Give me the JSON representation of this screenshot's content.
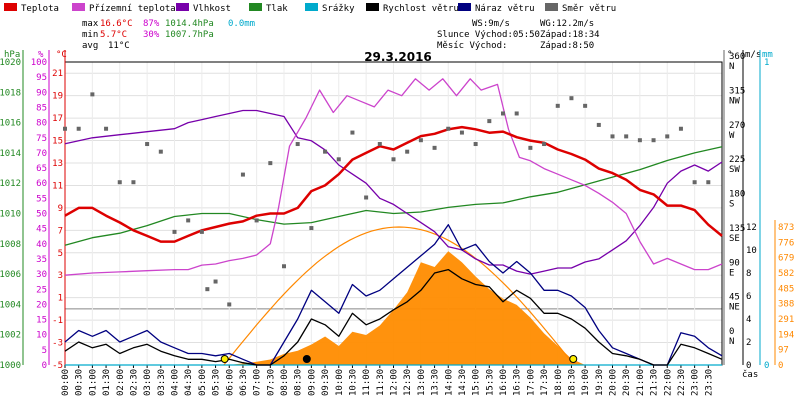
{
  "legend": [
    {
      "label": "Teplota",
      "color": "#dd0000"
    },
    {
      "label": "Přízemní teplota",
      "color": "#cc44cc"
    },
    {
      "label": "Vlhkost",
      "color": "#7700aa"
    },
    {
      "label": "Tlak",
      "color": "#228822"
    },
    {
      "label": "Srážky",
      "color": "#00aacc"
    },
    {
      "label": "Rychlost větru",
      "color": "#000000"
    },
    {
      "label": "Náraz větru",
      "color": "#000080"
    },
    {
      "label": "Směr větru",
      "color": "#666666"
    }
  ],
  "stats": {
    "max_label": "max",
    "max_temp": "16.6°C",
    "max_hum": "87%",
    "max_press": "1014.4hPa",
    "max_rain": "0.0mm",
    "min_label": "min",
    "min_temp": "5.7°C",
    "min_hum": "30%",
    "min_press": "1007.7hPa",
    "avg_label": "avg",
    "avg_temp": "11°C",
    "ws": "WS:9m/s",
    "wg": "WG:12.2m/s",
    "sun_rise": "Slunce Východ:05:50",
    "sun_set": "Západ:18:34",
    "moon_rise": "Měsíc  Východ:",
    "moon_set": "Západ:8:50"
  },
  "chart_data": {
    "type": "line",
    "title": "29.3.2016",
    "x_label": "čas",
    "x_ticks": [
      "00:00",
      "00:30",
      "01:00",
      "01:30",
      "02:00",
      "02:30",
      "03:00",
      "03:30",
      "04:00",
      "04:30",
      "05:00",
      "05:30",
      "06:00",
      "06:30",
      "07:00",
      "07:30",
      "08:00",
      "08:30",
      "09:00",
      "09:30",
      "10:00",
      "10:30",
      "11:00",
      "11:30",
      "12:00",
      "12:30",
      "13:00",
      "13:30",
      "14:00",
      "14:30",
      "15:00",
      "15:30",
      "16:00",
      "16:30",
      "17:00",
      "17:30",
      "18:00",
      "18:30",
      "19:00",
      "19:30",
      "20:00",
      "20:30",
      "21:00",
      "21:30",
      "22:00",
      "22:30",
      "23:00",
      "23:30"
    ],
    "axes": {
      "pressure_hpa": {
        "unit": "hPa",
        "ticks": [
          1000,
          1002,
          1004,
          1006,
          1008,
          1010,
          1012,
          1014,
          1016,
          1018,
          1020
        ],
        "color": "#228822"
      },
      "humidity_pct": {
        "unit": "%",
        "ticks": [
          0,
          5,
          10,
          15,
          20,
          25,
          30,
          35,
          40,
          45,
          50,
          55,
          60,
          65,
          70,
          75,
          80,
          85,
          90,
          95,
          100
        ],
        "color": "#cc00cc"
      },
      "temperature_c": {
        "unit": "°C",
        "ticks": [
          -5,
          -3,
          -1,
          1,
          3,
          5,
          7,
          9,
          11,
          13,
          15,
          17,
          19,
          21
        ],
        "color": "#dd0000"
      },
      "wind_dir": {
        "unit": "°",
        "ticks": [
          {
            "v": 0,
            "l": "N"
          },
          {
            "v": 45,
            "l": "NE"
          },
          {
            "v": 90,
            "l": "E"
          },
          {
            "v": 135,
            "l": "SE"
          },
          {
            "v": 180,
            "l": "S"
          },
          {
            "v": 225,
            "l": "SW"
          },
          {
            "v": 270,
            "l": "W"
          },
          {
            "v": 315,
            "l": "NW"
          },
          {
            "v": 360,
            "l": "N"
          }
        ]
      },
      "wind_ms": {
        "unit": "m/s",
        "ticks": [
          0,
          2,
          4,
          6,
          8,
          10,
          12
        ]
      },
      "rain_mm": {
        "unit": "mm",
        "ticks": [
          0,
          1
        ]
      },
      "solar_wm2": {
        "ticks": [
          0,
          97,
          194,
          291,
          388,
          485,
          582,
          679,
          776,
          873
        ]
      }
    },
    "series": [
      {
        "name": "Teplota",
        "color": "#dd0000",
        "axis": "temperature_c",
        "x": [
          0,
          0.5,
          1,
          1.5,
          2,
          2.5,
          3,
          3.5,
          4,
          4.5,
          5,
          5.5,
          6,
          6.5,
          7,
          7.5,
          8,
          8.5,
          9,
          9.5,
          10,
          10.5,
          11,
          11.5,
          12,
          12.5,
          13,
          13.5,
          14,
          14.5,
          15,
          15.5,
          16,
          16.5,
          17,
          17.5,
          18,
          18.5,
          19,
          19.5,
          20,
          20.5,
          21,
          21.5,
          22,
          22.5,
          23,
          23.5,
          24
        ],
        "y": [
          8.3,
          9.0,
          9.0,
          8.3,
          7.7,
          7.0,
          6.5,
          6.0,
          6.0,
          6.5,
          7.0,
          7.3,
          7.6,
          7.8,
          8.3,
          8.5,
          8.5,
          9.0,
          10.5,
          11.0,
          12.0,
          13.3,
          13.9,
          14.5,
          14.2,
          14.8,
          15.4,
          15.6,
          16.0,
          16.2,
          16.0,
          15.7,
          15.8,
          15.3,
          15.0,
          14.8,
          14.2,
          13.8,
          13.3,
          12.5,
          12.1,
          11.5,
          10.6,
          10.2,
          9.2,
          9.2,
          8.8,
          7.5,
          6.5
        ]
      },
      {
        "name": "Přízemní teplota",
        "color": "#cc44cc",
        "axis": "temperature_c",
        "x": [
          0,
          1,
          2,
          3,
          4,
          4.5,
          5,
          5.5,
          6,
          6.5,
          7,
          7.5,
          7.8,
          8.2,
          8.8,
          9.3,
          9.8,
          10.3,
          10.8,
          11.3,
          11.8,
          12.3,
          12.8,
          13.3,
          13.8,
          14.3,
          14.8,
          15.2,
          15.8,
          16.2,
          16.6,
          17,
          17.5,
          18,
          18.5,
          19,
          19.5,
          20,
          20.5,
          21,
          21.5,
          22,
          22.5,
          23,
          23.5,
          24
        ],
        "y": [
          3.0,
          3.2,
          3.3,
          3.4,
          3.5,
          3.5,
          3.9,
          4.0,
          4.3,
          4.5,
          4.8,
          5.8,
          9.0,
          14.5,
          17.0,
          19.5,
          17.5,
          19.0,
          18.5,
          18.0,
          19.5,
          19.0,
          20.5,
          19.5,
          20.5,
          19.0,
          20.5,
          19.5,
          20.0,
          16.0,
          13.5,
          13.2,
          12.5,
          12.0,
          11.5,
          11.0,
          10.3,
          9.5,
          8.5,
          6.0,
          4.0,
          4.5,
          4.0,
          3.5,
          3.5,
          4.0
        ]
      },
      {
        "name": "Vlhkost",
        "color": "#7700aa",
        "axis": "humidity_pct",
        "x": [
          0,
          1,
          2,
          3,
          4,
          4.5,
          5,
          5.5,
          6,
          6.5,
          7,
          7.5,
          8,
          8.5,
          9,
          9.5,
          10,
          10.5,
          11,
          11.5,
          12,
          12.5,
          13,
          13.5,
          14,
          14.5,
          15,
          15.5,
          16,
          16.5,
          17,
          17.5,
          18,
          18.5,
          19,
          19.5,
          20,
          20.5,
          21,
          21.5,
          22,
          22.5,
          23,
          23.5,
          24
        ],
        "y": [
          73,
          75,
          76,
          77,
          78,
          80,
          81,
          82,
          83,
          84,
          84,
          83,
          82,
          75,
          74,
          71,
          66,
          63,
          60,
          55,
          53,
          50,
          47,
          44,
          39,
          38,
          35,
          33,
          33,
          31,
          30,
          31,
          32,
          32,
          34,
          35,
          38,
          41,
          46,
          52,
          60,
          64,
          66,
          64,
          67
        ]
      },
      {
        "name": "Tlak",
        "color": "#228822",
        "axis": "pressure_hpa",
        "x": [
          0,
          1,
          2,
          3,
          4,
          5,
          6,
          7,
          8,
          9,
          10,
          11,
          12,
          13,
          14,
          15,
          16,
          17,
          18,
          19,
          20,
          21,
          22,
          23,
          24
        ],
        "y": [
          1007.9,
          1008.4,
          1008.7,
          1009.2,
          1009.8,
          1010.0,
          1010.0,
          1009.6,
          1009.3,
          1009.4,
          1009.8,
          1010.2,
          1010.0,
          1010.1,
          1010.4,
          1010.6,
          1010.7,
          1011.1,
          1011.4,
          1011.9,
          1012.4,
          1012.9,
          1013.5,
          1014.0,
          1014.4
        ]
      },
      {
        "name": "Srážky",
        "color": "#00aacc",
        "axis": "rain_mm",
        "x": [
          0,
          24
        ],
        "y": [
          0,
          0
        ]
      },
      {
        "name": "Rychlost větru",
        "color": "#000000",
        "axis": "wind_ms",
        "x": [
          0,
          0.5,
          1,
          1.5,
          2,
          2.5,
          3,
          3.5,
          4,
          4.5,
          5,
          5.5,
          6,
          6.5,
          7,
          7.5,
          8,
          8.5,
          9,
          9.5,
          10,
          10.5,
          11,
          11.5,
          12,
          12.5,
          13,
          13.5,
          14,
          14.5,
          15,
          15.5,
          16,
          16.5,
          17,
          17.5,
          18,
          18.5,
          19,
          19.5,
          20,
          20.5,
          21,
          21.5,
          22,
          22.5,
          23,
          23.5,
          24
        ],
        "y": [
          1.2,
          2.0,
          1.5,
          1.8,
          1.0,
          1.5,
          1.8,
          1.2,
          0.8,
          0.5,
          0.5,
          0.3,
          0.5,
          0.2,
          0,
          0,
          0.8,
          2.0,
          4.0,
          3.5,
          2.5,
          4.5,
          3.5,
          4.0,
          4.8,
          5.5,
          6.5,
          8.0,
          8.3,
          7.5,
          7.0,
          6.8,
          5.5,
          6.5,
          5.8,
          4.5,
          4.5,
          4.0,
          3.2,
          2.0,
          1.0,
          0.8,
          0.5,
          0,
          0,
          1.8,
          1.5,
          1.0,
          0.5
        ]
      },
      {
        "name": "Náraz větru",
        "color": "#000080",
        "axis": "wind_ms",
        "x": [
          0,
          0.5,
          1,
          1.5,
          2,
          2.5,
          3,
          3.5,
          4,
          4.5,
          5,
          5.5,
          6,
          6.5,
          7,
          7.5,
          8,
          8.5,
          9,
          9.5,
          10,
          10.5,
          11,
          11.5,
          12,
          12.5,
          13,
          13.5,
          14,
          14.5,
          15,
          15.5,
          16,
          16.5,
          17,
          17.5,
          18,
          18.5,
          19,
          19.5,
          20,
          20.5,
          21,
          21.5,
          22,
          22.5,
          23,
          23.5,
          24
        ],
        "y": [
          2.0,
          3.0,
          2.5,
          3.0,
          2.0,
          2.5,
          3.0,
          2.0,
          1.5,
          1.0,
          1.0,
          0.8,
          1.0,
          0.5,
          0,
          0,
          2.0,
          4.0,
          6.5,
          5.5,
          4.5,
          7.0,
          6.0,
          6.5,
          7.5,
          8.5,
          9.5,
          10.5,
          12.2,
          10.0,
          10.5,
          9.0,
          8.0,
          9.0,
          8.0,
          6.5,
          6.5,
          6.0,
          5.0,
          3.0,
          1.5,
          1.0,
          0.5,
          0,
          0,
          2.8,
          2.5,
          1.5,
          0.8
        ]
      },
      {
        "name": "Směr větru",
        "color": "#666666",
        "axis": "wind_dir",
        "type": "scatter",
        "x": [
          0,
          0.5,
          1,
          1.5,
          2,
          2.5,
          3,
          3.5,
          4,
          4.5,
          5,
          5.2,
          5.5,
          6,
          6.5,
          7,
          7.5,
          8,
          8.5,
          9,
          9.5,
          10,
          10.5,
          11,
          11.5,
          12,
          12.5,
          13,
          13.5,
          14,
          14.5,
          15,
          15.5,
          16,
          16.5,
          17,
          17.5,
          18,
          18.5,
          19,
          19.5,
          20,
          20.5,
          21,
          21.5,
          22,
          22.5,
          23,
          23.5
        ],
        "y": [
          270,
          270,
          315,
          270,
          200,
          200,
          250,
          240,
          135,
          150,
          135,
          60,
          70,
          40,
          210,
          150,
          225,
          90,
          250,
          140,
          240,
          230,
          265,
          180,
          250,
          230,
          240,
          255,
          245,
          270,
          265,
          250,
          280,
          290,
          290,
          245,
          250,
          300,
          310,
          300,
          275,
          260,
          260,
          255,
          255,
          260,
          270,
          200,
          200
        ]
      }
    ],
    "solar": {
      "axis": "solar_wm2",
      "x": [
        6,
        6.5,
        7,
        7.5,
        8,
        8.5,
        9,
        9.5,
        10,
        10.5,
        11,
        11.5,
        12,
        12.5,
        13,
        13.5,
        14,
        14.5,
        15,
        15.5,
        16,
        16.5,
        17,
        17.5,
        18,
        18.5,
        19
      ],
      "y": [
        0,
        10,
        20,
        35,
        70,
        90,
        130,
        180,
        120,
        210,
        190,
        250,
        350,
        460,
        650,
        620,
        720,
        650,
        560,
        480,
        420,
        380,
        300,
        200,
        120,
        40,
        0
      ],
      "theoretical_max": 873
    },
    "events": [
      {
        "name": "sunrise",
        "time": "05:50"
      },
      {
        "name": "moonset",
        "time": "08:50"
      },
      {
        "name": "sunset",
        "time": "18:34"
      }
    ]
  }
}
